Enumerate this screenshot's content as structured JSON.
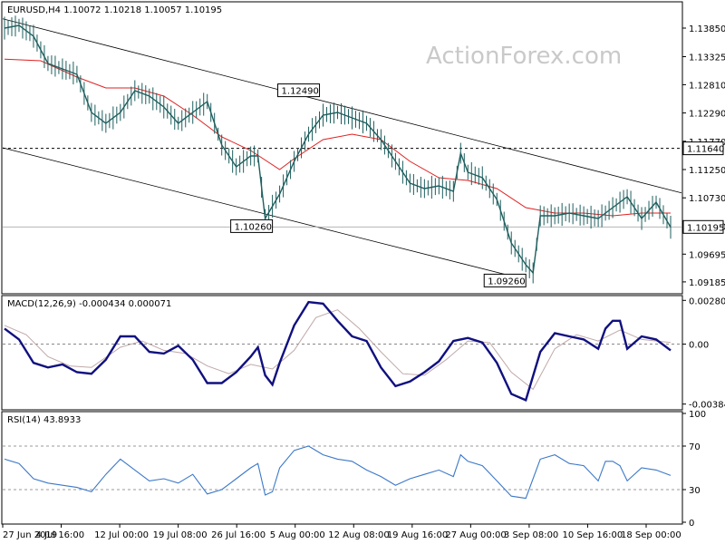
{
  "watermark": "ActionForex.com",
  "chart_data": [
    {
      "id": "price",
      "type": "candlestick",
      "title": "EURUSD,H4  1.10072 1.10218 1.10057 1.10195",
      "ylim": [
        1.09,
        1.143
      ],
      "yticks": [
        "1.13850",
        "1.13325",
        "1.12810",
        "1.12290",
        "1.11770",
        "1.11250",
        "1.10730",
        "1.10210",
        "1.09695",
        "1.09185"
      ],
      "ytick_values": [
        1.1385,
        1.13325,
        1.1281,
        1.1229,
        1.1177,
        1.1125,
        1.1073,
        1.1021,
        1.09695,
        1.09185
      ],
      "last_price": "1.10195",
      "last_price_value": 1.10195,
      "resistance": "1.11640",
      "resistance_value": 1.1164,
      "annotations": [
        {
          "text": "1.12490",
          "value": 1.1249,
          "bar": 43
        },
        {
          "text": "1.10260",
          "value": 1.1026,
          "bar": 36
        },
        {
          "text": "1.09260",
          "value": 1.0926,
          "bar": 71
        }
      ],
      "channel_upper": [
        [
          0,
          1.1402
        ],
        [
          92,
          1.1082
        ]
      ],
      "channel_lower": [
        [
          0,
          1.1165
        ],
        [
          71,
          1.0926
        ]
      ],
      "close_path": [
        [
          0,
          1.1385
        ],
        [
          2,
          1.139
        ],
        [
          4,
          1.137
        ],
        [
          6,
          1.132
        ],
        [
          8,
          1.131
        ],
        [
          10,
          1.13
        ],
        [
          12,
          1.123
        ],
        [
          14,
          1.121
        ],
        [
          16,
          1.123
        ],
        [
          18,
          1.127
        ],
        [
          20,
          1.126
        ],
        [
          22,
          1.124
        ],
        [
          24,
          1.121
        ],
        [
          26,
          1.123
        ],
        [
          28,
          1.125
        ],
        [
          30,
          1.117
        ],
        [
          32,
          1.113
        ],
        [
          34,
          1.115
        ],
        [
          35,
          1.115
        ],
        [
          36,
          1.1035
        ],
        [
          38,
          1.108
        ],
        [
          40,
          1.114
        ],
        [
          42,
          1.119
        ],
        [
          44,
          1.1225
        ],
        [
          46,
          1.123
        ],
        [
          48,
          1.122
        ],
        [
          50,
          1.121
        ],
        [
          52,
          1.118
        ],
        [
          54,
          1.114
        ],
        [
          56,
          1.11
        ],
        [
          58,
          1.109
        ],
        [
          60,
          1.1095
        ],
        [
          62,
          1.1085
        ],
        [
          63,
          1.1155
        ],
        [
          64,
          1.112
        ],
        [
          66,
          1.111
        ],
        [
          68,
          1.107
        ],
        [
          70,
          1.099
        ],
        [
          72,
          1.095
        ],
        [
          73,
          1.0935
        ],
        [
          74,
          1.104
        ],
        [
          76,
          1.104
        ],
        [
          78,
          1.1045
        ],
        [
          80,
          1.104
        ],
        [
          82,
          1.1035
        ],
        [
          84,
          1.1055
        ],
        [
          86,
          1.1075
        ],
        [
          88,
          1.1035
        ],
        [
          90,
          1.1065
        ],
        [
          92,
          1.1019
        ]
      ],
      "ma_path": [
        [
          0,
          1.1328
        ],
        [
          5,
          1.1325
        ],
        [
          10,
          1.1295
        ],
        [
          14,
          1.1275
        ],
        [
          18,
          1.1275
        ],
        [
          22,
          1.126
        ],
        [
          26,
          1.1225
        ],
        [
          30,
          1.1185
        ],
        [
          34,
          1.116
        ],
        [
          38,
          1.1125
        ],
        [
          40,
          1.1145
        ],
        [
          44,
          1.118
        ],
        [
          48,
          1.119
        ],
        [
          52,
          1.118
        ],
        [
          56,
          1.114
        ],
        [
          60,
          1.111
        ],
        [
          64,
          1.1105
        ],
        [
          68,
          1.109
        ],
        [
          72,
          1.1055
        ],
        [
          76,
          1.1045
        ],
        [
          80,
          1.1045
        ],
        [
          84,
          1.104
        ],
        [
          88,
          1.1045
        ],
        [
          92,
          1.1045
        ]
      ]
    },
    {
      "id": "macd",
      "type": "line",
      "title": "MACD(12,26,9) -0.000434 0.000071",
      "ylim": [
        -0.0041,
        0.003
      ],
      "yticks": [
        "0.002808",
        "0.00",
        "-0.003848"
      ],
      "ytick_values": [
        0.002808,
        0.0,
        -0.003848
      ],
      "macd_path": [
        [
          0,
          0.001
        ],
        [
          2,
          0.0003
        ],
        [
          4,
          -0.0012
        ],
        [
          6,
          -0.0015
        ],
        [
          8,
          -0.0013
        ],
        [
          10,
          -0.0018
        ],
        [
          12,
          -0.0019
        ],
        [
          14,
          -0.001
        ],
        [
          16,
          0.0005
        ],
        [
          18,
          0.0005
        ],
        [
          20,
          -0.0005
        ],
        [
          22,
          -0.0006
        ],
        [
          24,
          -0.0001
        ],
        [
          26,
          -0.001
        ],
        [
          28,
          -0.0025
        ],
        [
          30,
          -0.0025
        ],
        [
          32,
          -0.0018
        ],
        [
          34,
          -0.0008
        ],
        [
          35,
          -0.0002
        ],
        [
          36,
          -0.002
        ],
        [
          37,
          -0.0026
        ],
        [
          38,
          -0.0012
        ],
        [
          40,
          0.0012
        ],
        [
          42,
          0.0027
        ],
        [
          44,
          0.0026
        ],
        [
          46,
          0.0015
        ],
        [
          48,
          0.0005
        ],
        [
          50,
          0.0002
        ],
        [
          52,
          -0.0015
        ],
        [
          54,
          -0.0027
        ],
        [
          56,
          -0.0024
        ],
        [
          58,
          -0.0018
        ],
        [
          60,
          -0.0011
        ],
        [
          62,
          0.0002
        ],
        [
          64,
          0.0004
        ],
        [
          66,
          0.0001
        ],
        [
          68,
          -0.0012
        ],
        [
          70,
          -0.0032
        ],
        [
          72,
          -0.0036
        ],
        [
          74,
          -0.0005
        ],
        [
          76,
          0.0007
        ],
        [
          78,
          0.0005
        ],
        [
          80,
          0.0003
        ],
        [
          82,
          -0.0003
        ],
        [
          83,
          0.001
        ],
        [
          84,
          0.0015
        ],
        [
          85,
          0.0015
        ],
        [
          86,
          -0.0003
        ],
        [
          88,
          0.0005
        ],
        [
          90,
          0.0003
        ],
        [
          92,
          -0.0004
        ]
      ],
      "signal_path": [
        [
          0,
          0.0012
        ],
        [
          3,
          0.0006
        ],
        [
          6,
          -0.0008
        ],
        [
          9,
          -0.0014
        ],
        [
          12,
          -0.0015
        ],
        [
          16,
          -0.0002
        ],
        [
          19,
          0.0002
        ],
        [
          22,
          -0.0004
        ],
        [
          25,
          -0.0006
        ],
        [
          28,
          -0.0014
        ],
        [
          31,
          -0.0019
        ],
        [
          34,
          -0.0013
        ],
        [
          37,
          -0.0016
        ],
        [
          40,
          -0.0004
        ],
        [
          43,
          0.0017
        ],
        [
          46,
          0.0022
        ],
        [
          49,
          0.001
        ],
        [
          52,
          -0.0005
        ],
        [
          55,
          -0.0019
        ],
        [
          58,
          -0.002
        ],
        [
          61,
          -0.001
        ],
        [
          64,
          0.0002
        ],
        [
          67,
          0.0001
        ],
        [
          70,
          -0.0018
        ],
        [
          73,
          -0.0029
        ],
        [
          76,
          -0.0003
        ],
        [
          79,
          0.0006
        ],
        [
          82,
          0.0002
        ],
        [
          85,
          0.0009
        ],
        [
          88,
          0.0003
        ],
        [
          92,
          0.0001
        ]
      ]
    },
    {
      "id": "rsi",
      "type": "line",
      "title": "RSI(14) 43.8933",
      "ylim": [
        0,
        100
      ],
      "yticks": [
        "100",
        "70",
        "30",
        "0"
      ],
      "ytick_values": [
        100,
        70,
        30,
        0
      ],
      "levels": [
        70,
        30
      ],
      "rsi_path": [
        [
          0,
          58
        ],
        [
          2,
          54
        ],
        [
          4,
          40
        ],
        [
          6,
          36
        ],
        [
          8,
          34
        ],
        [
          10,
          32
        ],
        [
          12,
          28
        ],
        [
          14,
          44
        ],
        [
          16,
          58
        ],
        [
          18,
          48
        ],
        [
          20,
          38
        ],
        [
          22,
          40
        ],
        [
          24,
          36
        ],
        [
          26,
          44
        ],
        [
          28,
          26
        ],
        [
          30,
          30
        ],
        [
          32,
          40
        ],
        [
          34,
          50
        ],
        [
          35,
          54
        ],
        [
          36,
          25
        ],
        [
          37,
          28
        ],
        [
          38,
          50
        ],
        [
          40,
          66
        ],
        [
          42,
          70
        ],
        [
          44,
          62
        ],
        [
          46,
          58
        ],
        [
          48,
          56
        ],
        [
          50,
          48
        ],
        [
          52,
          42
        ],
        [
          54,
          34
        ],
        [
          56,
          40
        ],
        [
          58,
          44
        ],
        [
          60,
          48
        ],
        [
          62,
          42
        ],
        [
          63,
          62
        ],
        [
          64,
          56
        ],
        [
          66,
          52
        ],
        [
          68,
          38
        ],
        [
          70,
          24
        ],
        [
          72,
          22
        ],
        [
          74,
          58
        ],
        [
          76,
          62
        ],
        [
          78,
          54
        ],
        [
          80,
          52
        ],
        [
          82,
          38
        ],
        [
          83,
          56
        ],
        [
          84,
          56
        ],
        [
          85,
          52
        ],
        [
          86,
          38
        ],
        [
          88,
          50
        ],
        [
          90,
          48
        ],
        [
          92,
          43
        ]
      ]
    }
  ],
  "x_axis": {
    "labels": [
      "27 Jun 2019",
      "4 Jul 16:00",
      "12 Jul 00:00",
      "19 Jul 08:00",
      "26 Jul 16:00",
      "5 Aug 00:00",
      "12 Aug 08:00",
      "19 Aug 16:00",
      "27 Aug 00:00",
      "3 Sep 08:00",
      "10 Sep 16:00",
      "18 Sep 00:00"
    ],
    "label_bars": [
      0,
      11,
      22,
      33,
      44,
      55,
      66,
      77,
      88,
      99,
      110,
      121
    ]
  }
}
